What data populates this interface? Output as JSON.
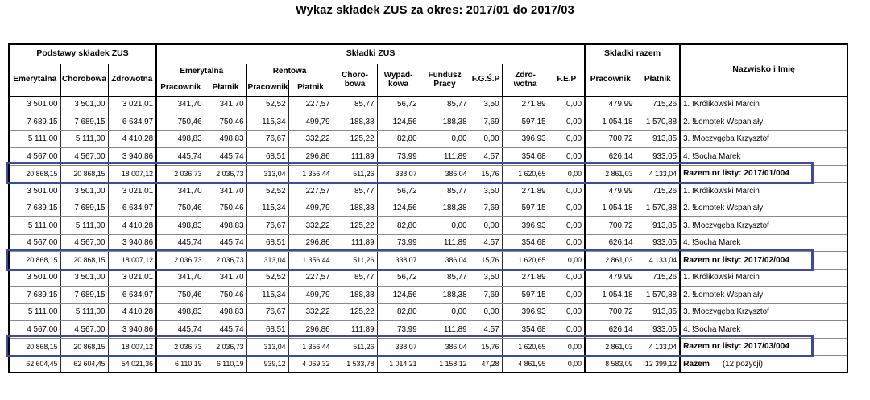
{
  "title": "Wykaz składek ZUS za okres: 2017/01 do 2017/03",
  "colors": {
    "highlight_border": "#3a4ba0",
    "grid_vertical": "#2b2b2b",
    "grid_horizontal": "#8a8a8a",
    "text": "#000000"
  },
  "table": {
    "header": {
      "podstawy_skladek": "Podstawy składek ZUS",
      "skladki_zus": "Składki ZUS",
      "skladki_razem": "Składki razem",
      "nazwisko_imie": "Nazwisko i Imię",
      "podstawa_emerytalna": "Emerytalna",
      "podstawa_chorobowa": "Chorobowa",
      "podstawa_zdrowotna": "Zdrowotna",
      "grupa_emerytalna": "Emerytalna",
      "grupa_rentowa": "Rentowa",
      "em_pracownik": "Pracownik",
      "em_platnik": "Płatnik",
      "rent_pracownik": "Pracownik",
      "rent_platnik": "Płatnik",
      "chorobowa": "Choro-\nbowa",
      "wypadkowa": "Wypad-\nkowa",
      "fundusz_pracy": "Fundusz\nPracy",
      "fgsp": "F.G.Ś.P",
      "zdrowotna": "Zdro-\nwotna",
      "fep": "F.E.P",
      "razem_pracownik": "Pracownik",
      "razem_platnik": "Płatnik"
    },
    "groups": [
      {
        "rows": [
          [
            "3 501,00",
            "3 501,00",
            "3 021,01",
            "341,70",
            "341,70",
            "52,52",
            "227,57",
            "85,77",
            "56,72",
            "85,77",
            "3,50",
            "271,89",
            "0,00",
            "479,99",
            "715,26",
            "1. !Królikowski Marcin"
          ],
          [
            "7 689,15",
            "7 689,15",
            "6 634,97",
            "750,46",
            "750,46",
            "115,34",
            "499,79",
            "188,38",
            "124,56",
            "188,38",
            "7,69",
            "597,15",
            "0,00",
            "1 054,18",
            "1 570,88",
            "2. !Łomotek Wspaniały"
          ],
          [
            "5 111,00",
            "5 111,00",
            "4 410,28",
            "498,83",
            "498,83",
            "76,67",
            "332,22",
            "125,22",
            "82,80",
            "0,00",
            "0,00",
            "396,93",
            "0,00",
            "700,72",
            "913,85",
            "3. !Moczygęba Krzysztof"
          ],
          [
            "4 567,00",
            "4 567,00",
            "3 940,86",
            "445,74",
            "445,74",
            "68,51",
            "296,86",
            "111,89",
            "73,99",
            "111,89",
            "4,57",
            "354,68",
            "0,00",
            "626,14",
            "933,05",
            "4. !Socha Marek"
          ]
        ],
        "total": {
          "values": [
            "20 868,15",
            "20 868,15",
            "18 007,12",
            "2 036,73",
            "2 036,73",
            "313,04",
            "1 356,44",
            "511,26",
            "338,07",
            "386,04",
            "15,76",
            "1 620,65",
            "0,00",
            "2 861,03",
            "4 133,04"
          ],
          "label": "Razem nr listy: 2017/01/004"
        }
      },
      {
        "rows": [
          [
            "3 501,00",
            "3 501,00",
            "3 021,01",
            "341,70",
            "341,70",
            "52,52",
            "227,57",
            "85,77",
            "56,72",
            "85,77",
            "3,50",
            "271,89",
            "0,00",
            "479,99",
            "715,26",
            "1. !Królikowski Marcin"
          ],
          [
            "7 689,15",
            "7 689,15",
            "6 634,97",
            "750,46",
            "750,46",
            "115,34",
            "499,79",
            "188,38",
            "124,56",
            "188,38",
            "7,69",
            "597,15",
            "0,00",
            "1 054,18",
            "1 570,88",
            "2. !Łomotek Wspaniały"
          ],
          [
            "5 111,00",
            "5 111,00",
            "4 410,28",
            "498,83",
            "498,83",
            "76,67",
            "332,22",
            "125,22",
            "82,80",
            "0,00",
            "0,00",
            "396,93",
            "0,00",
            "700,72",
            "913,85",
            "3. !Moczygęba Krzysztof"
          ],
          [
            "4 567,00",
            "4 567,00",
            "3 940,86",
            "445,74",
            "445,74",
            "68,51",
            "296,86",
            "111,89",
            "73,99",
            "111,89",
            "4,57",
            "354,68",
            "0,00",
            "626,14",
            "933,05",
            "4. !Socha Marek"
          ]
        ],
        "total": {
          "values": [
            "20 868,15",
            "20 868,15",
            "18 007,12",
            "2 036,73",
            "2 036,73",
            "313,04",
            "1 356,44",
            "511,26",
            "338,07",
            "386,04",
            "15,76",
            "1 620,65",
            "0,00",
            "2 861,03",
            "4 133,04"
          ],
          "label": "Razem nr listy: 2017/02/004"
        }
      },
      {
        "rows": [
          [
            "3 501,00",
            "3 501,00",
            "3 021,01",
            "341,70",
            "341,70",
            "52,52",
            "227,57",
            "85,77",
            "56,72",
            "85,77",
            "3,50",
            "271,89",
            "0,00",
            "479,99",
            "715,26",
            "1. !Królikowski Marcin"
          ],
          [
            "7 689,15",
            "7 689,15",
            "6 634,97",
            "750,46",
            "750,46",
            "115,34",
            "499,79",
            "188,38",
            "124,56",
            "188,38",
            "7,69",
            "597,15",
            "0,00",
            "1 054,18",
            "1 570,88",
            "2. !Łomotek Wspaniały"
          ],
          [
            "5 111,00",
            "5 111,00",
            "4 410,28",
            "498,83",
            "498,83",
            "76,67",
            "332,22",
            "125,22",
            "82,80",
            "0,00",
            "0,00",
            "396,93",
            "0,00",
            "700,72",
            "913,85",
            "3. !Moczygęba Krzysztof"
          ],
          [
            "4 567,00",
            "4 567,00",
            "3 940,86",
            "445,74",
            "445,74",
            "68,51",
            "296,86",
            "111,89",
            "73,99",
            "111,89",
            "4,57",
            "354,68",
            "0,00",
            "626,14",
            "933,05",
            "4. !Socha Marek"
          ]
        ],
        "total": {
          "values": [
            "20 868,15",
            "20 868,15",
            "18 007,12",
            "2 036,73",
            "2 036,73",
            "313,04",
            "1 356,44",
            "511,26",
            "338,07",
            "386,04",
            "15,76",
            "1 620,65",
            "0,00",
            "2 861,03",
            "4 133,04"
          ],
          "label": "Razem nr listy: 2017/03/004"
        }
      }
    ],
    "grand_total": {
      "values": [
        "62 604,45",
        "62 604,45",
        "54 021,36",
        "6 110,19",
        "6 110,19",
        "939,12",
        "4 069,32",
        "1 533,78",
        "1 014,21",
        "1 158,12",
        "47,28",
        "4 861,95",
        "0,00",
        "8 583,09",
        "12 399,12"
      ],
      "label": "Razem",
      "label_suffix": "(12 pozycji)"
    }
  }
}
